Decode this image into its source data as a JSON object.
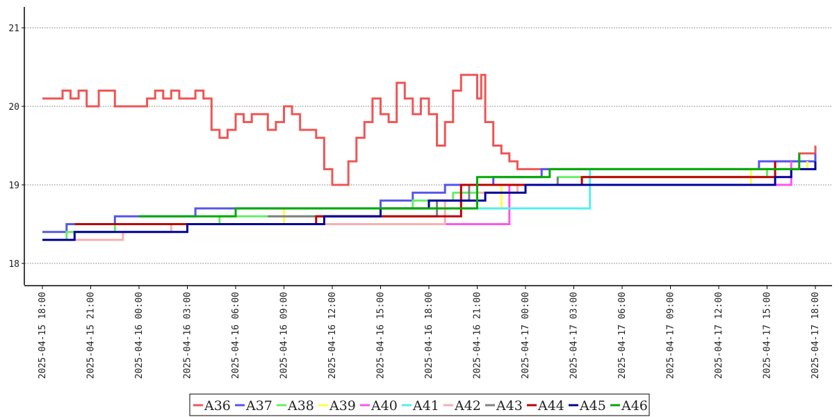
{
  "chart_data": {
    "type": "line",
    "step": true,
    "grid": {
      "y": true,
      "x": false,
      "style": "dotted"
    },
    "legend_position": "bottom-center",
    "x_axis": {
      "type": "datetime",
      "range": [
        "2025-04-15 18:00",
        "2025-04-17 18:00"
      ],
      "ticks": [
        "2025-04-15 18:00",
        "2025-04-15 21:00",
        "2025-04-16 00:00",
        "2025-04-16 03:00",
        "2025-04-16 06:00",
        "2025-04-16 09:00",
        "2025-04-16 12:00",
        "2025-04-16 15:00",
        "2025-04-16 18:00",
        "2025-04-16 21:00",
        "2025-04-17 00:00",
        "2025-04-17 03:00",
        "2025-04-17 06:00",
        "2025-04-17 09:00",
        "2025-04-17 12:00",
        "2025-04-17 15:00",
        "2025-04-17 18:00"
      ]
    },
    "y_axis": {
      "range": [
        17.75,
        21.25
      ],
      "ticks": [
        18,
        19,
        20,
        21
      ]
    },
    "series": [
      {
        "name": "A36",
        "color": "#ef5555",
        "x": [
          "2025-04-15 18:00",
          "2025-04-15 18:45",
          "2025-04-15 19:15",
          "2025-04-15 19:45",
          "2025-04-15 20:15",
          "2025-04-15 20:45",
          "2025-04-15 21:30",
          "2025-04-15 22:30",
          "2025-04-16 00:00",
          "2025-04-16 00:30",
          "2025-04-16 01:00",
          "2025-04-16 01:30",
          "2025-04-16 02:00",
          "2025-04-16 02:30",
          "2025-04-16 03:30",
          "2025-04-16 04:00",
          "2025-04-16 04:30",
          "2025-04-16 05:00",
          "2025-04-16 05:30",
          "2025-04-16 06:00",
          "2025-04-16 06:30",
          "2025-04-16 07:00",
          "2025-04-16 08:00",
          "2025-04-16 08:30",
          "2025-04-16 09:00",
          "2025-04-16 09:30",
          "2025-04-16 10:00",
          "2025-04-16 10:30",
          "2025-04-16 11:00",
          "2025-04-16 11:30",
          "2025-04-16 12:00",
          "2025-04-16 12:30",
          "2025-04-16 13:00",
          "2025-04-16 13:30",
          "2025-04-16 14:00",
          "2025-04-16 14:30",
          "2025-04-16 15:00",
          "2025-04-16 15:30",
          "2025-04-16 16:00",
          "2025-04-16 16:30",
          "2025-04-16 17:00",
          "2025-04-16 17:30",
          "2025-04-16 18:00",
          "2025-04-16 18:30",
          "2025-04-16 19:00",
          "2025-04-16 19:30",
          "2025-04-16 20:00",
          "2025-04-16 20:30",
          "2025-04-16 21:00",
          "2025-04-16 21:15",
          "2025-04-16 21:30",
          "2025-04-16 22:00",
          "2025-04-16 22:30",
          "2025-04-16 23:00",
          "2025-04-16 23:30",
          "2025-04-17 00:00",
          "2025-04-17 03:00",
          "2025-04-17 06:00",
          "2025-04-17 09:00",
          "2025-04-17 12:00",
          "2025-04-17 14:00",
          "2025-04-17 15:30",
          "2025-04-17 16:00",
          "2025-04-17 17:00",
          "2025-04-17 18:00"
        ],
        "values": [
          20.1,
          20.1,
          20.2,
          20.1,
          20.2,
          20.0,
          20.2,
          20.0,
          20.0,
          20.1,
          20.2,
          20.1,
          20.2,
          20.1,
          20.2,
          20.1,
          19.7,
          19.6,
          19.7,
          19.9,
          19.8,
          19.9,
          19.7,
          19.8,
          20.0,
          19.9,
          19.7,
          19.7,
          19.6,
          19.2,
          19.0,
          19.0,
          19.3,
          19.6,
          19.8,
          20.1,
          19.9,
          19.8,
          20.3,
          20.1,
          19.9,
          20.1,
          19.9,
          19.5,
          19.8,
          20.2,
          20.4,
          20.4,
          20.1,
          20.4,
          19.8,
          19.5,
          19.4,
          19.3,
          19.2,
          19.2,
          19.2,
          19.2,
          19.2,
          19.2,
          19.2,
          19.3,
          19.3,
          19.4,
          19.5
        ]
      },
      {
        "name": "A37",
        "color": "#5555ee",
        "x": [
          "2025-04-15 18:00",
          "2025-04-15 19:30",
          "2025-04-15 22:30",
          "2025-04-16 03:00",
          "2025-04-16 03:30",
          "2025-04-16 05:00",
          "2025-04-16 15:00",
          "2025-04-16 17:00",
          "2025-04-16 19:00",
          "2025-04-16 20:30",
          "2025-04-16 22:00",
          "2025-04-17 00:00",
          "2025-04-17 01:00",
          "2025-04-17 13:30",
          "2025-04-17 14:30",
          "2025-04-17 16:00",
          "2025-04-17 18:00"
        ],
        "values": [
          18.4,
          18.5,
          18.6,
          18.6,
          18.7,
          18.7,
          18.8,
          18.9,
          19.0,
          19.0,
          19.1,
          19.1,
          19.2,
          19.2,
          19.3,
          19.3,
          19.4
        ]
      },
      {
        "name": "A38",
        "color": "#66ee66",
        "x": [
          "2025-04-15 18:00",
          "2025-04-15 19:30",
          "2025-04-15 22:30",
          "2025-04-16 02:30",
          "2025-04-16 05:00",
          "2025-04-16 15:00",
          "2025-04-16 17:00",
          "2025-04-16 19:30",
          "2025-04-16 21:00",
          "2025-04-16 23:00",
          "2025-04-17 02:00",
          "2025-04-17 15:00",
          "2025-04-17 18:00"
        ],
        "values": [
          18.3,
          18.4,
          18.5,
          18.5,
          18.6,
          18.7,
          18.8,
          18.9,
          19.0,
          19.0,
          19.1,
          19.2,
          19.3
        ]
      },
      {
        "name": "A39",
        "color": "#ffff44",
        "x": [
          "2025-04-15 20:00",
          "2025-04-16 09:00",
          "2025-04-16 22:30",
          "2025-04-17 14:00",
          "2025-04-17 17:30"
        ],
        "values": [
          18.5,
          18.7,
          19.0,
          19.2,
          19.3
        ]
      },
      {
        "name": "A40",
        "color": "#ff55ee",
        "x": [
          "2025-04-15 21:00",
          "2025-04-16 01:00",
          "2025-04-16 23:00",
          "2025-04-17 16:30"
        ],
        "values": [
          18.5,
          18.5,
          19.0,
          19.3
        ]
      },
      {
        "name": "A41",
        "color": "#55eeee",
        "x": [
          "2025-04-16 06:30",
          "2025-04-16 10:00",
          "2025-04-16 13:00",
          "2025-04-17 04:00",
          "2025-04-17 08:30",
          "2025-04-17 11:30"
        ],
        "values": [
          18.7,
          18.7,
          18.7,
          19.2,
          19.2,
          19.2
        ]
      },
      {
        "name": "A42",
        "color": "#f5b0b0",
        "x": [
          "2025-04-15 18:15",
          "2025-04-15 23:00",
          "2025-04-16 02:00",
          "2025-04-16 19:00",
          "2025-04-16 21:00",
          "2025-04-16 23:30"
        ],
        "values": [
          18.3,
          18.4,
          18.5,
          18.8,
          18.9,
          19.0
        ]
      },
      {
        "name": "A43",
        "color": "#808080",
        "x": [
          "2025-04-16 08:00",
          "2025-04-16 18:30",
          "2025-04-16 20:30",
          "2025-04-17 02:00"
        ],
        "values": [
          18.6,
          18.8,
          19.0,
          19.1
        ]
      },
      {
        "name": "A44",
        "color": "#bb0000",
        "x": [
          "2025-04-15 20:00",
          "2025-04-16 00:00",
          "2025-04-16 11:00",
          "2025-04-16 20:00",
          "2025-04-17 03:30",
          "2025-04-17 05:00",
          "2025-04-17 15:30"
        ],
        "values": [
          18.5,
          18.5,
          18.6,
          19.0,
          19.1,
          19.1,
          19.3
        ]
      },
      {
        "name": "A45",
        "color": "#000099",
        "x": [
          "2025-04-15 18:00",
          "2025-04-15 19:30",
          "2025-04-15 20:00",
          "2025-04-16 00:00",
          "2025-04-16 03:00",
          "2025-04-16 11:00",
          "2025-04-16 11:30",
          "2025-04-16 15:00",
          "2025-04-16 16:00",
          "2025-04-16 18:00",
          "2025-04-16 19:00",
          "2025-04-16 21:30",
          "2025-04-16 22:30",
          "2025-04-17 00:00",
          "2025-04-17 01:00",
          "2025-04-17 09:00",
          "2025-04-17 10:30",
          "2025-04-17 15:30",
          "2025-04-17 16:30",
          "2025-04-17 18:00"
        ],
        "values": [
          18.3,
          18.3,
          18.4,
          18.4,
          18.5,
          18.5,
          18.6,
          18.7,
          18.7,
          18.8,
          18.8,
          18.9,
          18.9,
          19.0,
          19.0,
          19.0,
          19.0,
          19.1,
          19.2,
          19.3
        ]
      },
      {
        "name": "A46",
        "color": "#00aa00",
        "x": [
          "2025-04-16 00:00",
          "2025-04-16 06:00",
          "2025-04-16 10:00",
          "2025-04-16 21:00",
          "2025-04-17 01:30",
          "2025-04-17 17:00"
        ],
        "values": [
          18.6,
          18.7,
          18.7,
          19.1,
          19.2,
          19.4
        ]
      }
    ]
  }
}
